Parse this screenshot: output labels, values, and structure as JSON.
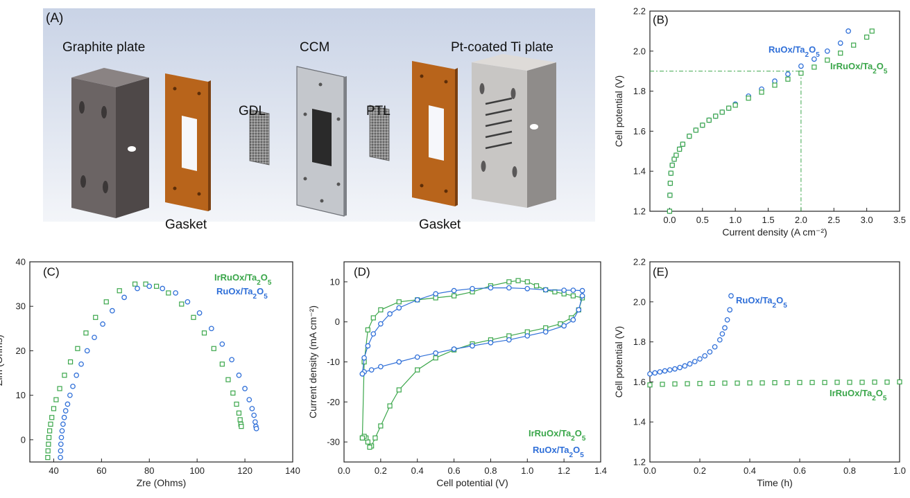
{
  "panel_a": {
    "label": "(A)",
    "parts": {
      "graphite_plate": "Graphite plate",
      "gasket_left": "Gasket",
      "gdl": "GDL",
      "ccm": "CCM",
      "ptl": "PTL",
      "gasket_right": "Gasket",
      "ti_plate": "Pt-coated Ti plate"
    }
  },
  "colors": {
    "irruo": "#3aa64a",
    "ruo": "#2f6fd8",
    "guide": "#3aa64a"
  },
  "chart_data": [
    {
      "id": "B",
      "label": "(B)",
      "type": "scatter",
      "xlabel": "Current density (A cm⁻²)",
      "ylabel": "Cell potential (V)",
      "xlim": [
        -0.3,
        3.5
      ],
      "ylim": [
        1.2,
        2.2
      ],
      "xticks": [
        "0.0",
        "0.5",
        "1.0",
        "1.5",
        "2.0",
        "2.5",
        "3.0",
        "3.5"
      ],
      "yticks": [
        "1.2",
        "1.4",
        "1.6",
        "1.8",
        "2.0",
        "2.2"
      ],
      "guides": {
        "x": 2.0,
        "y": 1.9
      },
      "series": [
        {
          "name": "RuOx/Ta2O5",
          "marker": "circle",
          "x": [
            0,
            0.005,
            0.01,
            0.02,
            0.04,
            0.07,
            0.1,
            0.15,
            0.2,
            0.3,
            0.4,
            0.5,
            0.6,
            0.7,
            0.8,
            0.9,
            1.0,
            1.2,
            1.4,
            1.6,
            1.8,
            2.0,
            2.2,
            2.4,
            2.6,
            2.72
          ],
          "y": [
            1.2,
            1.28,
            1.34,
            1.39,
            1.43,
            1.46,
            1.48,
            1.51,
            1.535,
            1.575,
            1.605,
            1.63,
            1.655,
            1.675,
            1.695,
            1.715,
            1.735,
            1.775,
            1.81,
            1.85,
            1.885,
            1.925,
            1.96,
            2.0,
            2.04,
            2.1
          ]
        },
        {
          "name": "IrRuOx/Ta2O5",
          "marker": "square",
          "x": [
            0,
            0.005,
            0.01,
            0.02,
            0.04,
            0.07,
            0.1,
            0.15,
            0.2,
            0.3,
            0.4,
            0.5,
            0.6,
            0.7,
            0.8,
            0.9,
            1.0,
            1.2,
            1.4,
            1.6,
            1.8,
            2.0,
            2.2,
            2.4,
            2.6,
            2.8,
            3.0,
            3.08
          ],
          "y": [
            1.2,
            1.28,
            1.34,
            1.39,
            1.43,
            1.46,
            1.48,
            1.51,
            1.535,
            1.575,
            1.605,
            1.63,
            1.655,
            1.675,
            1.695,
            1.715,
            1.73,
            1.765,
            1.795,
            1.83,
            1.86,
            1.89,
            1.92,
            1.955,
            1.99,
            2.03,
            2.07,
            2.1
          ]
        }
      ]
    },
    {
      "id": "C",
      "label": "(C)",
      "type": "scatter",
      "xlabel": "Zre (Ohms)",
      "ylabel": "-Zim (Ohms)",
      "xlim": [
        30,
        140
      ],
      "ylim": [
        -5,
        40
      ],
      "xticks": [
        "40",
        "60",
        "80",
        "100",
        "120",
        "140"
      ],
      "yticks": [
        "0",
        "10",
        "20",
        "30",
        "40"
      ],
      "series": [
        {
          "name": "IrRuOx/Ta2O5",
          "marker": "square",
          "x": [
            37.5,
            37.6,
            37.8,
            38.0,
            38.3,
            38.7,
            39.2,
            40.0,
            41.0,
            42.5,
            44.5,
            47.0,
            50.0,
            53.5,
            57.5,
            62.0,
            67.5,
            74.0,
            78.5,
            83.0,
            88.0,
            93.5,
            98.5,
            103.0,
            107.0,
            110.5,
            113.0,
            115.0,
            116.5,
            117.5,
            118.0,
            118.3,
            118.5
          ],
          "y": [
            -4,
            -2.5,
            -1,
            0.5,
            2,
            3.5,
            5,
            7,
            9,
            11.5,
            14.5,
            17.5,
            20.5,
            24,
            27.5,
            31,
            33.5,
            35,
            35,
            34.5,
            33,
            30.5,
            27.5,
            24,
            20.5,
            17,
            13.5,
            10.5,
            8,
            6,
            4.5,
            3.5,
            3
          ]
        },
        {
          "name": "RuOx/Ta2O5",
          "marker": "circle",
          "x": [
            42.8,
            42.9,
            43.0,
            43.2,
            43.5,
            43.9,
            44.4,
            45.0,
            45.8,
            46.8,
            48.0,
            49.5,
            51.5,
            54.0,
            57.0,
            60.5,
            64.5,
            69.5,
            75.0,
            80.0,
            85.5,
            91.0,
            96.0,
            101.0,
            106.0,
            110.5,
            114.5,
            117.5,
            120.0,
            121.8,
            123.0,
            123.8,
            124.3,
            124.6,
            124.8
          ],
          "y": [
            -4,
            -2.5,
            -1,
            0.5,
            2,
            3.5,
            5,
            6.5,
            8,
            10,
            12,
            14.5,
            17,
            20,
            23,
            26,
            29,
            32,
            34,
            34.5,
            34,
            33,
            31,
            28.5,
            25,
            21.5,
            18,
            14.5,
            11.5,
            9,
            7,
            5.5,
            4,
            3,
            2.5
          ]
        }
      ]
    },
    {
      "id": "D",
      "label": "(D)",
      "type": "line",
      "xlabel": "Cell potential (V)",
      "ylabel": "Current density (mA cm⁻²)",
      "xlim": [
        0.0,
        1.4
      ],
      "ylim": [
        -35,
        15
      ],
      "xticks": [
        "0.0",
        "0.2",
        "0.4",
        "0.6",
        "0.8",
        "1.0",
        "1.2",
        "1.4"
      ],
      "yticks": [
        "-30",
        "-20",
        "-10",
        "0",
        "10"
      ],
      "series": [
        {
          "name": "IrRuOx/Ta2O5",
          "marker": "square",
          "x": [
            0.1,
            0.11,
            0.13,
            0.16,
            0.2,
            0.3,
            0.4,
            0.5,
            0.6,
            0.7,
            0.8,
            0.9,
            0.95,
            1.0,
            1.05,
            1.1,
            1.15,
            1.2,
            1.25,
            1.3,
            1.28,
            1.24,
            1.18,
            1.1,
            1.0,
            0.9,
            0.8,
            0.7,
            0.6,
            0.5,
            0.4,
            0.3,
            0.25,
            0.2,
            0.17,
            0.15,
            0.14,
            0.13,
            0.12,
            0.11,
            0.1
          ],
          "y": [
            -29,
            -10,
            -2,
            1,
            3,
            5,
            5.5,
            6,
            6.5,
            7.5,
            9,
            10,
            10.3,
            10,
            9,
            8,
            7.5,
            7,
            6.5,
            6,
            3,
            1,
            -0.5,
            -1.5,
            -2.5,
            -3.5,
            -4.5,
            -5.5,
            -7,
            -9,
            -12,
            -17,
            -21,
            -26,
            -29,
            -31,
            -31.3,
            -30,
            -29,
            -28.6,
            -29
          ]
        },
        {
          "name": "RuOx/Ta2O5",
          "marker": "circle",
          "x": [
            0.1,
            0.11,
            0.13,
            0.16,
            0.2,
            0.25,
            0.3,
            0.4,
            0.5,
            0.6,
            0.7,
            0.8,
            0.9,
            1.0,
            1.1,
            1.2,
            1.25,
            1.3,
            1.3,
            1.28,
            1.25,
            1.2,
            1.1,
            1.0,
            0.9,
            0.8,
            0.7,
            0.6,
            0.5,
            0.4,
            0.3,
            0.2,
            0.15,
            0.11,
            0.1
          ],
          "y": [
            -13,
            -9,
            -6,
            -3,
            -0.5,
            2,
            3.5,
            5.5,
            7,
            7.8,
            8.3,
            8.5,
            8.5,
            8.3,
            8.0,
            7.9,
            7.9,
            7.8,
            6.5,
            3,
            0.5,
            -1,
            -2.5,
            -3.5,
            -4.5,
            -5.2,
            -6,
            -6.8,
            -7.8,
            -8.8,
            -10,
            -11.2,
            -12,
            -12.5,
            -13
          ]
        }
      ]
    },
    {
      "id": "E",
      "label": "(E)",
      "type": "scatter",
      "xlabel": "Time (h)",
      "ylabel": "Cell potential (V)",
      "xlim": [
        0.0,
        1.0
      ],
      "ylim": [
        1.2,
        2.2
      ],
      "xticks": [
        "0.0",
        "0.2",
        "0.4",
        "0.6",
        "0.8",
        "1.0"
      ],
      "yticks": [
        "1.2",
        "1.4",
        "1.6",
        "1.8",
        "2.0",
        "2.2"
      ],
      "series": [
        {
          "name": "RuOx/Ta2O5",
          "marker": "circle",
          "x": [
            0,
            0.02,
            0.04,
            0.06,
            0.08,
            0.1,
            0.12,
            0.14,
            0.16,
            0.18,
            0.2,
            0.22,
            0.24,
            0.26,
            0.28,
            0.29,
            0.3,
            0.31,
            0.32,
            0.325
          ],
          "y": [
            1.64,
            1.645,
            1.65,
            1.655,
            1.66,
            1.665,
            1.672,
            1.68,
            1.69,
            1.702,
            1.715,
            1.73,
            1.75,
            1.775,
            1.81,
            1.84,
            1.87,
            1.91,
            1.96,
            2.03
          ]
        },
        {
          "name": "IrRuOx/Ta2O5",
          "marker": "square",
          "x": [
            0,
            0.05,
            0.1,
            0.15,
            0.2,
            0.25,
            0.3,
            0.35,
            0.4,
            0.45,
            0.5,
            0.55,
            0.6,
            0.65,
            0.7,
            0.75,
            0.8,
            0.85,
            0.9,
            0.95,
            1.0
          ],
          "y": [
            1.585,
            1.588,
            1.59,
            1.591,
            1.592,
            1.593,
            1.594,
            1.594,
            1.595,
            1.595,
            1.596,
            1.596,
            1.597,
            1.597,
            1.597,
            1.598,
            1.598,
            1.598,
            1.599,
            1.599,
            1.6
          ]
        }
      ]
    }
  ]
}
